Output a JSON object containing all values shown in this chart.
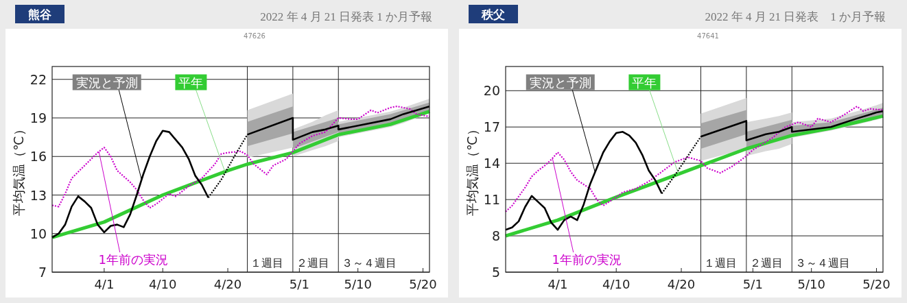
{
  "chart_data": [
    {
      "type": "line",
      "title": "熊谷",
      "subtitle": "2022 年 4 月 21 日発表 1 か月予報",
      "ylabel": "平均気温（℃）",
      "xlim": [
        "--03-24",
        "--05-21"
      ],
      "xticks": [
        {
          "value": "--04-01",
          "label": "4/1"
        },
        {
          "value": "--04-10",
          "label": "4/10"
        },
        {
          "value": "--04-20",
          "label": "4/20"
        },
        {
          "value": "--05-01",
          "label": "5/1"
        },
        {
          "value": "--05-10",
          "label": "5/10"
        },
        {
          "value": "--05-20",
          "label": "5/20"
        }
      ],
      "ylim": [
        7,
        23
      ],
      "yticks": [
        7,
        10,
        13,
        16,
        19,
        22
      ],
      "grid": "y",
      "legend": false,
      "ref_lines": [
        {
          "axis": "x",
          "value": "--04-23"
        },
        {
          "axis": "x",
          "value": "--04-30"
        },
        {
          "axis": "x",
          "value": "--05-07"
        }
      ],
      "annotations": [
        "47626",
        {
          "text": "１週目",
          "x": "--04-23"
        },
        {
          "text": "２週目",
          "x": "--04-30"
        },
        {
          "text": "３～４週目",
          "x": "--05-07"
        }
      ],
      "series": [
        {
          "name": "平年",
          "type": "line",
          "color": "#33cc33",
          "line_style": "solid",
          "x": [
            "--03-24",
            "--04-01",
            "--04-10",
            "--04-20",
            "--04-23",
            "--04-30",
            "--05-07",
            "--05-15",
            "--05-21"
          ],
          "values": [
            9.7,
            10.9,
            13.0,
            14.9,
            15.4,
            16.3,
            17.7,
            18.5,
            19.5
          ]
        },
        {
          "name": "1年前の実況",
          "type": "line",
          "color": "#cc00cc",
          "line_style": "dotted",
          "x": [
            "--03-24",
            "--03-25",
            "--03-26",
            "--03-27",
            "--03-29",
            "--03-31",
            "--04-01",
            "--04-02",
            "--04-03",
            "--04-05",
            "--04-06",
            "--04-07",
            "--04-08",
            "--04-09",
            "--04-11",
            "--04-12",
            "--04-14",
            "--04-16",
            "--04-18",
            "--04-19",
            "--04-20",
            "--04-22",
            "--04-23",
            "--04-24",
            "--04-26",
            "--04-27",
            "--04-29",
            "--05-01",
            "--05-03",
            "--05-05",
            "--05-07",
            "--05-09",
            "--05-10",
            "--05-12",
            "--05-13",
            "--05-15",
            "--05-16",
            "--05-18",
            "--05-19",
            "--05-21"
          ],
          "values": [
            12.2,
            12.1,
            13.1,
            14.3,
            15.3,
            16.3,
            16.7,
            16.0,
            14.9,
            14.0,
            13.4,
            12.6,
            12.0,
            12.3,
            13.1,
            12.9,
            13.7,
            14.3,
            15.4,
            16.2,
            16.3,
            16.4,
            16.1,
            15.4,
            14.6,
            15.3,
            15.8,
            17.0,
            17.6,
            17.9,
            19.0,
            18.9,
            18.9,
            19.6,
            19.4,
            19.8,
            19.9,
            19.7,
            19.3,
            19.1
          ]
        },
        {
          "type": "line",
          "color": "#000000",
          "line_style": "dotted",
          "x": [
            "--04-17",
            "--04-19",
            "--04-21",
            "--04-23"
          ],
          "values": [
            12.8,
            14.2,
            16.0,
            17.7
          ]
        },
        {
          "name": "実況と予測",
          "type": "line",
          "color": "#000000",
          "line_style": "solid",
          "x": [
            "--03-24",
            "--03-25",
            "--03-26",
            "--03-27",
            "--03-28",
            "--03-29",
            "--03-30",
            "--03-31",
            "--04-01",
            "--04-02",
            "--04-03",
            "--04-04",
            "--04-05",
            "--04-06",
            "--04-07",
            "--04-08",
            "--04-09",
            "--04-10",
            "--04-11",
            "--04-12",
            "--04-13",
            "--04-14",
            "--04-15",
            "--04-16",
            "--04-17"
          ],
          "values": [
            9.7,
            10.0,
            10.7,
            12.1,
            12.9,
            12.5,
            12.0,
            10.7,
            10.1,
            10.6,
            10.7,
            10.5,
            11.5,
            13.0,
            14.6,
            16.0,
            17.2,
            18.0,
            17.9,
            17.3,
            16.7,
            15.8,
            14.5,
            13.8,
            12.8
          ]
        },
        {
          "type": "line",
          "color": "#d9d9d9",
          "x": [
            "--04-23",
            "--04-30",
            "--04-30",
            "--05-03",
            "--05-05",
            "--05-07",
            "--05-07",
            "--05-15",
            "--05-17",
            "--05-21"
          ],
          "values": [
            null,
            null,
            null,
            null,
            null,
            null,
            null,
            null,
            null,
            null
          ],
          "lower": [
            15.9,
            16.7,
            16.0,
            16.5,
            16.8,
            17.2,
            17.5,
            18.3,
            18.6,
            19.4
          ],
          "upper": [
            19.6,
            20.9,
            18.1,
            18.7,
            19.2,
            19.6,
            18.7,
            19.5,
            19.8,
            20.5
          ]
        },
        {
          "type": "line",
          "color": "#a6a6a6",
          "x": [
            "--04-23",
            "--04-30",
            "--04-30",
            "--05-07",
            "--05-07",
            "--05-15",
            "--05-21"
          ],
          "values": [
            null,
            null,
            null,
            null,
            null,
            null,
            null
          ],
          "lower": [
            16.8,
            17.8,
            16.6,
            17.9,
            17.8,
            18.6,
            19.5
          ],
          "upper": [
            18.7,
            19.9,
            17.9,
            19.0,
            18.5,
            19.3,
            20.2
          ]
        },
        {
          "type": "line",
          "color": "#000000",
          "line_style": "solid",
          "x": [
            "--04-23",
            "--04-30",
            "--04-30",
            "--05-03",
            "--05-05",
            "--05-07",
            "--05-07",
            "--05-15",
            "--05-17",
            "--05-21"
          ],
          "values": [
            17.7,
            19.0,
            17.3,
            17.9,
            18.1,
            18.4,
            18.1,
            18.9,
            19.3,
            19.9
          ]
        }
      ]
    },
    {
      "type": "line",
      "title": "秩父",
      "subtitle": "2022 年 4 月 21 日発表　1 か月予報",
      "ylabel": "平均気温（℃）",
      "xlim": [
        "--03-24",
        "--05-21"
      ],
      "xticks": [
        {
          "value": "--04-01",
          "label": "4/1"
        },
        {
          "value": "--04-10",
          "label": "4/10"
        },
        {
          "value": "--04-20",
          "label": "4/20"
        },
        {
          "value": "--05-01",
          "label": "5/1"
        },
        {
          "value": "--05-10",
          "label": "5/10"
        },
        {
          "value": "--05-20",
          "label": "5/20"
        }
      ],
      "ylim": [
        5,
        22
      ],
      "yticks": [
        5,
        8,
        11,
        14,
        17,
        20
      ],
      "grid": "y",
      "legend": false,
      "ref_lines": [
        {
          "axis": "x",
          "value": "--04-23"
        },
        {
          "axis": "x",
          "value": "--04-30"
        },
        {
          "axis": "x",
          "value": "--05-07"
        }
      ],
      "annotations": [
        "47641",
        {
          "text": "１週目",
          "x": "--04-23"
        },
        {
          "text": "２週目",
          "x": "--04-30"
        },
        {
          "text": "３～４週目",
          "x": "--05-07"
        }
      ],
      "series": [
        {
          "name": "平年",
          "type": "line",
          "color": "#33cc33",
          "line_style": "solid",
          "x": [
            "--03-24",
            "--04-01",
            "--04-10",
            "--04-20",
            "--04-23",
            "--04-30",
            "--05-07",
            "--05-13",
            "--05-21"
          ],
          "values": [
            8.0,
            9.3,
            11.2,
            13.2,
            13.8,
            15.2,
            16.3,
            16.9,
            17.9
          ]
        },
        {
          "name": "1年前の実況",
          "type": "line",
          "color": "#cc00cc",
          "line_style": "dotted",
          "x": [
            "--03-24",
            "--03-25",
            "--03-27",
            "--03-28",
            "--03-29",
            "--03-30",
            "--03-31",
            "--04-01",
            "--04-02",
            "--04-03",
            "--04-04",
            "--04-06",
            "--04-07",
            "--04-08",
            "--04-10",
            "--04-11",
            "--04-13",
            "--04-15",
            "--04-17",
            "--04-19",
            "--04-21",
            "--04-23",
            "--04-24",
            "--04-26",
            "--04-28",
            "--04-30",
            "--05-01",
            "--05-04",
            "--05-06",
            "--05-08",
            "--05-10",
            "--05-11",
            "--05-13",
            "--05-15",
            "--05-17",
            "--05-18",
            "--05-19",
            "--05-21"
          ],
          "values": [
            10.0,
            10.5,
            12.0,
            12.9,
            13.4,
            13.8,
            14.3,
            14.9,
            14.3,
            13.3,
            12.6,
            11.9,
            11.0,
            10.5,
            11.2,
            11.6,
            11.9,
            12.5,
            13.3,
            14.1,
            14.5,
            14.2,
            13.6,
            13.2,
            13.8,
            14.6,
            15.1,
            16.1,
            17.0,
            17.4,
            17.0,
            17.7,
            17.4,
            18.0,
            18.7,
            18.3,
            18.5,
            18.4
          ]
        },
        {
          "type": "line",
          "color": "#000000",
          "line_style": "dotted",
          "x": [
            "--04-17",
            "--04-19",
            "--04-21",
            "--04-23"
          ],
          "values": [
            11.5,
            13.0,
            14.6,
            16.2
          ]
        },
        {
          "name": "実況と予測",
          "type": "line",
          "color": "#000000",
          "line_style": "solid",
          "x": [
            "--03-24",
            "--03-25",
            "--03-26",
            "--03-27",
            "--03-28",
            "--03-29",
            "--03-30",
            "--03-31",
            "--04-01",
            "--04-02",
            "--04-03",
            "--04-04",
            "--04-05",
            "--04-06",
            "--04-07",
            "--04-08",
            "--04-09",
            "--04-10",
            "--04-11",
            "--04-12",
            "--04-13",
            "--04-14",
            "--04-15",
            "--04-16",
            "--04-17"
          ],
          "values": [
            8.5,
            8.7,
            9.2,
            10.4,
            11.3,
            10.8,
            10.3,
            9.1,
            8.5,
            9.3,
            9.6,
            9.3,
            10.6,
            12.3,
            13.6,
            14.9,
            15.8,
            16.5,
            16.6,
            16.3,
            15.7,
            14.7,
            13.4,
            12.6,
            11.5
          ]
        },
        {
          "type": "line",
          "color": "#d9d9d9",
          "x": [
            "--04-23",
            "--04-30",
            "--04-30",
            "--05-03",
            "--05-05",
            "--05-07",
            "--05-07",
            "--05-13",
            "--05-17",
            "--05-20",
            "--05-21"
          ],
          "values": [
            null,
            null,
            null,
            null,
            null,
            null,
            null,
            null,
            null,
            null,
            null
          ],
          "lower": [
            14.2,
            15.2,
            14.6,
            15.0,
            15.2,
            15.6,
            16.1,
            16.7,
            17.2,
            17.6,
            17.8
          ],
          "upper": [
            18.1,
            19.4,
            17.4,
            17.7,
            17.9,
            18.2,
            17.4,
            17.7,
            18.3,
            18.8,
            19.0
          ]
        },
        {
          "type": "line",
          "color": "#a6a6a6",
          "x": [
            "--04-23",
            "--04-30",
            "--04-30",
            "--05-07",
            "--05-07",
            "--05-13",
            "--05-21"
          ],
          "values": [
            null,
            null,
            null,
            null,
            null,
            null,
            null
          ],
          "lower": [
            15.2,
            16.4,
            15.2,
            16.3,
            16.4,
            16.9,
            17.9
          ],
          "upper": [
            17.3,
            18.4,
            16.6,
            17.6,
            17.1,
            17.4,
            18.6
          ]
        },
        {
          "type": "line",
          "color": "#000000",
          "line_style": "solid",
          "x": [
            "--04-23",
            "--04-30",
            "--04-30",
            "--05-03",
            "--05-05",
            "--05-07",
            "--05-07",
            "--05-13",
            "--05-17",
            "--05-20",
            "--05-21"
          ],
          "values": [
            16.2,
            17.5,
            15.9,
            16.4,
            16.6,
            17.0,
            16.6,
            17.0,
            17.7,
            18.2,
            18.3
          ]
        }
      ]
    }
  ]
}
